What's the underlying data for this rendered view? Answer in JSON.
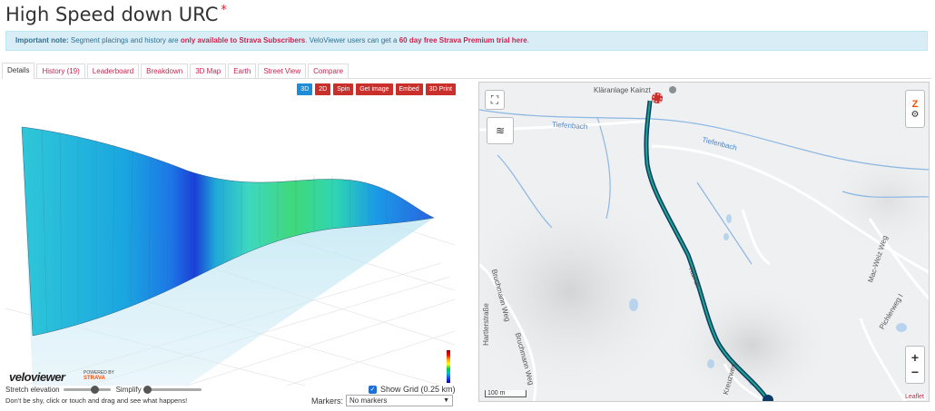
{
  "page": {
    "title": "High Speed down URC",
    "title_star": "*"
  },
  "note": {
    "prefix": "Important note:",
    "text1": " Segment placings and history are ",
    "red1": "only available to Strava Subscribers",
    "text2": ". VeloViewer users can get a ",
    "red2": "60 day free Strava Premium trial here",
    "text3": "."
  },
  "tabs": [
    {
      "label": "Details",
      "active": true
    },
    {
      "label": "History (19)"
    },
    {
      "label": "Leaderboard"
    },
    {
      "label": "Breakdown"
    },
    {
      "label": "3D Map"
    },
    {
      "label": "Earth"
    },
    {
      "label": "Street View"
    },
    {
      "label": "Compare"
    }
  ],
  "toolbar": {
    "btn_3d": "3D",
    "btn_2d": "2D",
    "spin": "Spin",
    "get_image": "Get image",
    "embed": "Embed",
    "print3d": "3D Print"
  },
  "branding": {
    "logo": "veloviewer",
    "powered_by": "POWERED BY",
    "strava": "STRAVA"
  },
  "controls": {
    "stretch_label": "Stretch elevation",
    "simplify_label": "Simplify",
    "show_grid_label": "Show Grid (0.25 km)",
    "show_grid_checked": true,
    "hint": "Don't be shy, click or touch and drag and see what happens!",
    "markers_label": "Markers:",
    "markers_value": "No markers"
  },
  "map": {
    "places": {
      "klaeranlage": "Kläranlage Kainzt",
      "tiefenbach1": "Tiefenbach",
      "tiefenbach2": "Tiefenbach",
      "macweiz": "Mac-Weiz Weg",
      "bruchmann1": "Bruchmann Weg",
      "bruchmann2": "Bruchmann Weg",
      "hartlerstrasse": "Hartlerstraße",
      "pichlerweg": "Pichlerweg I",
      "kreuzweg": "Kreuzweg",
      "road_label": "Kainzt"
    },
    "scale": "100 m",
    "attribution": "Leaflet",
    "zoom_in": "+",
    "zoom_out": "−"
  },
  "colors": {
    "accent_red": "#c9302c",
    "accent_blue": "#1f8dd6",
    "route": "#0d3b66",
    "route_inner": "#1aa88a"
  }
}
